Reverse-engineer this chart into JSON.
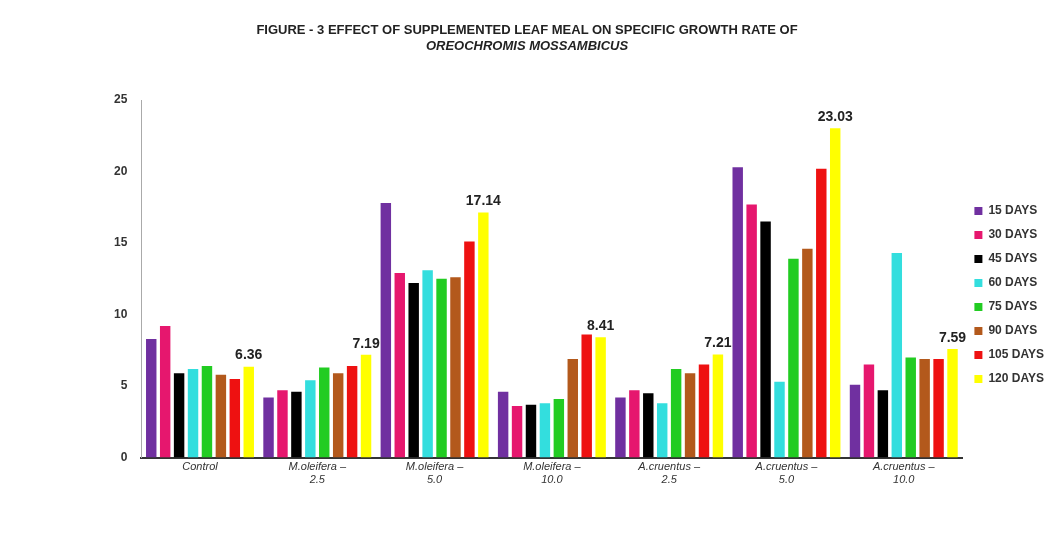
{
  "chart_data": {
    "type": "bar",
    "title": "FIGURE - 3 EFFECT OF SUPPLEMENTED LEAF MEAL ON SPECIFIC GROWTH RATE OF",
    "subtitle": "OREOCHROMIS MOSSAMBICUS",
    "categories": [
      "Control",
      "M.oleifera – 2.5",
      "M.oleifera – 5.0",
      "M.oleifera – 10.0",
      "A.cruentus – 2.5",
      "A.cruentus – 5.0",
      "A.cruentus – 10.0"
    ],
    "series": [
      {
        "name": "15 DAYS",
        "color": "#7030a0",
        "values": [
          8.3,
          4.2,
          17.8,
          4.6,
          4.2,
          20.3,
          5.1
        ]
      },
      {
        "name": "30 DAYS",
        "color": "#e6176e",
        "values": [
          9.2,
          4.7,
          12.9,
          3.6,
          4.7,
          17.7,
          6.5
        ]
      },
      {
        "name": "45 DAYS",
        "color": "#000000",
        "values": [
          5.9,
          4.6,
          12.2,
          3.7,
          4.5,
          16.5,
          4.7
        ]
      },
      {
        "name": "60 DAYS",
        "color": "#33dede",
        "values": [
          6.2,
          5.4,
          13.1,
          3.8,
          3.8,
          5.3,
          14.3
        ]
      },
      {
        "name": "75 DAYS",
        "color": "#22cc22",
        "values": [
          6.4,
          6.3,
          12.5,
          4.1,
          6.2,
          13.9,
          7.0
        ]
      },
      {
        "name": "90 DAYS",
        "color": "#b3591c",
        "values": [
          5.8,
          5.9,
          12.6,
          6.9,
          5.9,
          14.6,
          6.9
        ]
      },
      {
        "name": "105 DAYS",
        "color": "#ee1111",
        "values": [
          5.5,
          6.4,
          15.1,
          8.6,
          6.5,
          20.2,
          6.9
        ]
      },
      {
        "name": "120 DAYS",
        "color": "#ffff00",
        "values": [
          6.36,
          7.19,
          17.14,
          8.41,
          7.21,
          23.03,
          7.59
        ],
        "value_labels": [
          "6.36",
          "7.19",
          "17.14",
          "8.41",
          "7.21",
          "23.03",
          "7.59"
        ]
      }
    ],
    "ylim": [
      0,
      25
    ],
    "yticks": [
      0,
      5,
      10,
      15,
      20,
      25
    ],
    "grid": false,
    "legend": "right"
  }
}
